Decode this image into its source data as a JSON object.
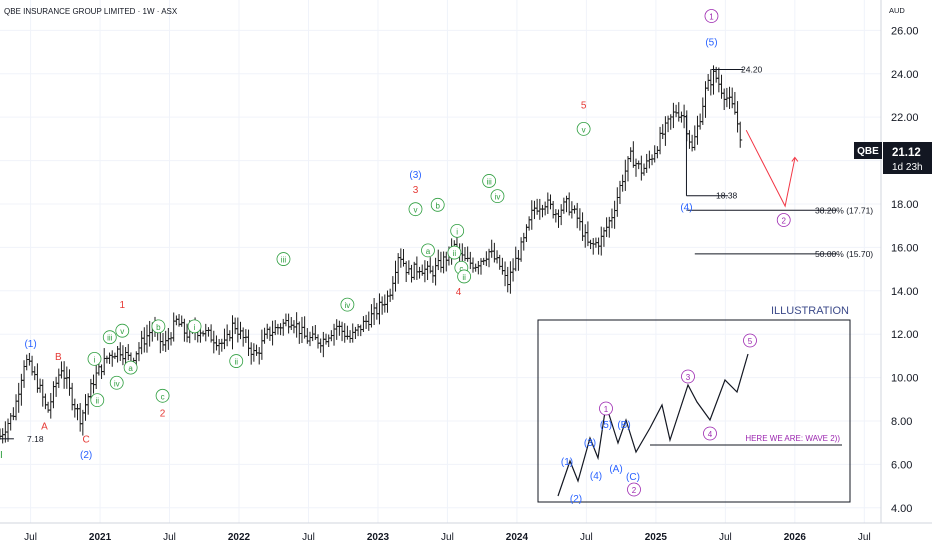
{
  "chart_data": {
    "type": "candlestick-ohlc",
    "title": "QBE INSURANCE GROUP LIMITED · 1W · ASX",
    "currency": "AUD",
    "symbol": "QBE",
    "last_price": "21.12",
    "countdown": "1d 23h",
    "ylim": [
      3.3,
      27.4
    ],
    "y_ticks": [
      4,
      6,
      8,
      10,
      12,
      14,
      16,
      18,
      20,
      22,
      24,
      26
    ],
    "y_tick_labels": [
      "4.00",
      "6.00",
      "8.00",
      "10.00",
      "12.00",
      "14.00",
      "16.00",
      "18.00",
      "20.00",
      "22.00",
      "24.00",
      "26.00"
    ],
    "x_range": [
      2020.28,
      2026.62
    ],
    "x_ticks": [
      {
        "t": 2020.5,
        "label": "Jul",
        "bold": false
      },
      {
        "t": 2021.0,
        "label": "2021",
        "bold": true
      },
      {
        "t": 2021.5,
        "label": "Jul",
        "bold": false
      },
      {
        "t": 2022.0,
        "label": "2022",
        "bold": true
      },
      {
        "t": 2022.5,
        "label": "Jul",
        "bold": false
      },
      {
        "t": 2023.0,
        "label": "2023",
        "bold": true
      },
      {
        "t": 2023.5,
        "label": "Jul",
        "bold": false
      },
      {
        "t": 2024.0,
        "label": "2024",
        "bold": true
      },
      {
        "t": 2024.5,
        "label": "Jul",
        "bold": false
      },
      {
        "t": 2025.0,
        "label": "2025",
        "bold": true
      },
      {
        "t": 2025.5,
        "label": "Jul",
        "bold": false
      },
      {
        "t": 2026.0,
        "label": "2026",
        "bold": true
      },
      {
        "t": 2026.5,
        "label": "Jul",
        "bold": false
      }
    ],
    "price_waypoints": [
      [
        2020.28,
        7.3
      ],
      [
        2020.38,
        8.4
      ],
      [
        2020.46,
        10.9
      ],
      [
        2020.56,
        9.6
      ],
      [
        2020.62,
        8.4
      ],
      [
        2020.72,
        10.5
      ],
      [
        2020.8,
        9.0
      ],
      [
        2020.86,
        8.1
      ],
      [
        2020.96,
        10.0
      ],
      [
        2021.06,
        11.0
      ],
      [
        2021.14,
        11.3
      ],
      [
        2021.22,
        10.8
      ],
      [
        2021.3,
        11.6
      ],
      [
        2021.38,
        12.3
      ],
      [
        2021.46,
        11.4
      ],
      [
        2021.55,
        12.6
      ],
      [
        2021.62,
        12.0
      ],
      [
        2021.72,
        12.2
      ],
      [
        2021.82,
        11.8
      ],
      [
        2021.9,
        11.5
      ],
      [
        2021.96,
        12.5
      ],
      [
        2022.05,
        11.6
      ],
      [
        2022.12,
        11.0
      ],
      [
        2022.2,
        12.0
      ],
      [
        2022.3,
        12.4
      ],
      [
        2022.38,
        12.7
      ],
      [
        2022.48,
        11.8
      ],
      [
        2022.6,
        11.7
      ],
      [
        2022.7,
        12.4
      ],
      [
        2022.8,
        11.8
      ],
      [
        2022.9,
        12.5
      ],
      [
        2022.98,
        13.0
      ],
      [
        2023.08,
        13.8
      ],
      [
        2023.15,
        15.8
      ],
      [
        2023.22,
        14.8
      ],
      [
        2023.3,
        15.1
      ],
      [
        2023.38,
        14.8
      ],
      [
        2023.46,
        15.3
      ],
      [
        2023.55,
        16.0
      ],
      [
        2023.62,
        15.4
      ],
      [
        2023.7,
        15.2
      ],
      [
        2023.8,
        15.8
      ],
      [
        2023.88,
        15.1
      ],
      [
        2023.93,
        14.3
      ],
      [
        2023.98,
        15.2
      ],
      [
        2024.05,
        16.3
      ],
      [
        2024.12,
        17.8
      ],
      [
        2024.2,
        18.1
      ],
      [
        2024.28,
        17.6
      ],
      [
        2024.36,
        18.0
      ],
      [
        2024.43,
        17.4
      ],
      [
        2024.52,
        16.0
      ],
      [
        2024.6,
        16.3
      ],
      [
        2024.68,
        17.4
      ],
      [
        2024.76,
        19.2
      ],
      [
        2024.82,
        20.2
      ],
      [
        2024.9,
        19.5
      ],
      [
        2024.98,
        20.3
      ],
      [
        2025.03,
        21.0
      ],
      [
        2025.08,
        21.6
      ],
      [
        2025.14,
        22.3
      ],
      [
        2025.2,
        22.1
      ],
      [
        2025.26,
        20.5
      ],
      [
        2025.31,
        21.8
      ],
      [
        2025.36,
        23.3
      ],
      [
        2025.42,
        24.0
      ],
      [
        2025.48,
        23.2
      ],
      [
        2025.52,
        22.8
      ],
      [
        2025.57,
        22.2
      ],
      [
        2025.61,
        21.1
      ]
    ],
    "horizontal_levels": [
      {
        "value": 24.2,
        "label": "24.20"
      },
      {
        "value": 18.38,
        "label": "18.38"
      },
      {
        "value": 17.71,
        "label": "38.20% (17.71)"
      },
      {
        "value": 15.7,
        "label": "50.00% (15.70)"
      },
      {
        "value": 7.18,
        "label": "7.18"
      }
    ],
    "projection": {
      "from": [
        2025.65,
        21.4
      ],
      "to": [
        2025.93,
        17.9
      ],
      "end": [
        2026.0,
        20.1
      ]
    },
    "wave_labels": [
      {
        "t": 2020.28,
        "v": 6.3,
        "text": "II",
        "color": "#2e9e3f",
        "circle": false
      },
      {
        "t": 2020.5,
        "v": 11.4,
        "text": "(1)",
        "color": "#2962ff",
        "circle": false
      },
      {
        "t": 2020.7,
        "v": 10.8,
        "text": "B",
        "color": "#e53935",
        "circle": false
      },
      {
        "t": 2020.6,
        "v": 7.6,
        "text": "A",
        "color": "#e53935",
        "circle": false
      },
      {
        "t": 2020.9,
        "v": 7.0,
        "text": "C",
        "color": "#e53935",
        "circle": false
      },
      {
        "t": 2020.9,
        "v": 6.3,
        "text": "(2)",
        "color": "#2962ff",
        "circle": false
      },
      {
        "t": 2021.16,
        "v": 13.2,
        "text": "1",
        "color": "#e53935",
        "circle": false
      },
      {
        "t": 2021.16,
        "v": 12.0,
        "text": "v",
        "color": "#2e9e3f",
        "circle": true
      },
      {
        "t": 2021.07,
        "v": 11.7,
        "text": "iii",
        "color": "#2e9e3f",
        "circle": true
      },
      {
        "t": 2020.96,
        "v": 10.7,
        "text": "i",
        "color": "#2e9e3f",
        "circle": true
      },
      {
        "t": 2021.12,
        "v": 9.6,
        "text": "iv",
        "color": "#2e9e3f",
        "circle": true
      },
      {
        "t": 2020.98,
        "v": 8.8,
        "text": "ii",
        "color": "#2e9e3f",
        "circle": true
      },
      {
        "t": 2021.22,
        "v": 10.3,
        "text": "a",
        "color": "#2e9e3f",
        "circle": true
      },
      {
        "t": 2021.42,
        "v": 12.2,
        "text": "b",
        "color": "#2e9e3f",
        "circle": true
      },
      {
        "t": 2021.45,
        "v": 9.0,
        "text": "c",
        "color": "#2e9e3f",
        "circle": true
      },
      {
        "t": 2021.45,
        "v": 8.2,
        "text": "2",
        "color": "#e53935",
        "circle": false
      },
      {
        "t": 2021.68,
        "v": 12.2,
        "text": "i",
        "color": "#2e9e3f",
        "circle": true
      },
      {
        "t": 2021.98,
        "v": 10.6,
        "text": "ii",
        "color": "#2e9e3f",
        "circle": true
      },
      {
        "t": 2022.32,
        "v": 15.3,
        "text": "iii",
        "color": "#2e9e3f",
        "circle": true
      },
      {
        "t": 2022.78,
        "v": 13.2,
        "text": "iv",
        "color": "#2e9e3f",
        "circle": true
      },
      {
        "t": 2023.27,
        "v": 19.2,
        "text": "(3)",
        "color": "#2962ff",
        "circle": false
      },
      {
        "t": 2023.27,
        "v": 18.5,
        "text": "3",
        "color": "#e53935",
        "circle": false
      },
      {
        "t": 2023.27,
        "v": 17.6,
        "text": "v",
        "color": "#2e9e3f",
        "circle": true
      },
      {
        "t": 2023.43,
        "v": 17.8,
        "text": "b",
        "color": "#2e9e3f",
        "circle": true
      },
      {
        "t": 2023.36,
        "v": 15.7,
        "text": "a",
        "color": "#2e9e3f",
        "circle": true
      },
      {
        "t": 2023.57,
        "v": 16.6,
        "text": "i",
        "color": "#2e9e3f",
        "circle": true
      },
      {
        "t": 2023.55,
        "v": 15.6,
        "text": "ii",
        "color": "#2e9e3f",
        "circle": true
      },
      {
        "t": 2023.8,
        "v": 18.9,
        "text": "iii",
        "color": "#2e9e3f",
        "circle": true
      },
      {
        "t": 2023.86,
        "v": 18.2,
        "text": "iv",
        "color": "#2e9e3f",
        "circle": true
      },
      {
        "t": 2023.6,
        "v": 14.9,
        "text": "c",
        "color": "#2e9e3f",
        "circle": true
      },
      {
        "t": 2023.62,
        "v": 14.5,
        "text": "ii",
        "color": "#2e9e3f",
        "circle": true
      },
      {
        "t": 2023.58,
        "v": 13.8,
        "text": "4",
        "color": "#e53935",
        "circle": false
      },
      {
        "t": 2024.48,
        "v": 21.3,
        "text": "v",
        "color": "#2e9e3f",
        "circle": true
      },
      {
        "t": 2024.48,
        "v": 22.4,
        "text": "5",
        "color": "#e53935",
        "circle": false
      },
      {
        "t": 2025.4,
        "v": 26.5,
        "text": "1",
        "color": "#9c27b0",
        "circle": true
      },
      {
        "t": 2025.4,
        "v": 25.3,
        "text": "(5)",
        "color": "#2962ff",
        "circle": false
      },
      {
        "t": 2025.22,
        "v": 17.7,
        "text": "(4)",
        "color": "#2962ff",
        "circle": false
      },
      {
        "t": 2025.92,
        "v": 17.1,
        "text": "2",
        "color": "#9c27b0",
        "circle": true
      }
    ],
    "illustration_title": "ILLUSTRATION",
    "illustration_note": "HERE WE ARE: WAVE 2))",
    "illustration_labels": [
      {
        "text": "(1)",
        "color": "#2962ff",
        "circle": false
      },
      {
        "text": "(2)",
        "color": "#2962ff",
        "circle": false
      },
      {
        "text": "(3)",
        "color": "#2962ff",
        "circle": false
      },
      {
        "text": "(4)",
        "color": "#2962ff",
        "circle": false
      },
      {
        "text": "(5)",
        "color": "#2962ff",
        "circle": false
      },
      {
        "text": "(A)",
        "color": "#2962ff",
        "circle": false
      },
      {
        "text": "(B)",
        "color": "#2962ff",
        "circle": false
      },
      {
        "text": "(C)",
        "color": "#2962ff",
        "circle": false
      },
      {
        "text": "1",
        "color": "#9c27b0",
        "circle": true
      },
      {
        "text": "2",
        "color": "#9c27b0",
        "circle": true
      },
      {
        "text": "3",
        "color": "#9c27b0",
        "circle": true
      },
      {
        "text": "4",
        "color": "#9c27b0",
        "circle": true
      },
      {
        "text": "5",
        "color": "#9c27b0",
        "circle": true
      }
    ]
  },
  "colors": {
    "bars": "#1b1b1b",
    "grid": "#f0f3fa",
    "axis_text": "#131722",
    "price_tag_bg": "#131722",
    "projection": "#f23645",
    "fib_line": "#131722",
    "illustration_title": "#3c4a8a",
    "illustration_note": "#9c27b0"
  }
}
